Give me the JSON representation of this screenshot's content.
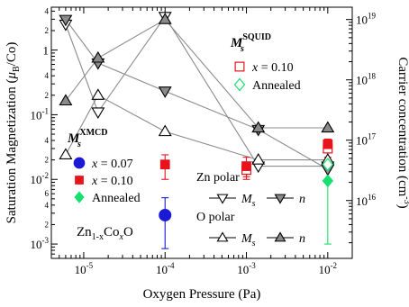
{
  "chart_data": {
    "type": "scatter",
    "xlabel": "Oxygen Pressure (Pa)",
    "ylabel_left": "Saturation Magnetization (μB/Co)",
    "ylabel_right": "Carrier concentration (cm⁻³)",
    "x_scale": "log",
    "y_scale": "log",
    "xlim": [
      4e-06,
      0.02
    ],
    "ylim_left": [
      0.0006,
      4.6
    ],
    "ylim_right": [
      1100000000000000.0,
      1.6e+19
    ],
    "x_ticks": [
      {
        "v": 1e-05,
        "b": "10",
        "e": "-5"
      },
      {
        "v": 0.0001,
        "b": "10",
        "e": "-4"
      },
      {
        "v": 0.001,
        "b": "10",
        "e": "-3"
      },
      {
        "v": 0.01,
        "b": "10",
        "e": "-2"
      }
    ],
    "y_left_ticks": [
      {
        "v": 0.001,
        "b": "10",
        "e": "-3"
      },
      {
        "v": 0.01,
        "b": "10",
        "e": "-2"
      },
      {
        "v": 0.1,
        "b": "10",
        "e": "-1"
      },
      {
        "v": 1,
        "b": "1",
        "e": ""
      }
    ],
    "y_left_minor_labels": [
      {
        "v": 0.002,
        "t": "2"
      },
      {
        "v": 0.004,
        "t": "4"
      },
      {
        "v": 0.006,
        "t": "6"
      },
      {
        "v": 0.02,
        "t": "2"
      },
      {
        "v": 0.04,
        "t": "4"
      },
      {
        "v": 0.2,
        "t": "2"
      },
      {
        "v": 0.4,
        "t": "4"
      },
      {
        "v": 2,
        "t": "2"
      },
      {
        "v": 4,
        "t": "4"
      }
    ],
    "y_right_ticks": [
      {
        "v": 1e+16,
        "b": "10",
        "e": "16"
      },
      {
        "v": 1e+17,
        "b": "10",
        "e": "17"
      },
      {
        "v": 1e+18,
        "b": "10",
        "e": "18"
      },
      {
        "v": 1e+19,
        "b": "10",
        "e": "19"
      }
    ],
    "sample_label": {
      "pre": "Zn",
      "sub1": "1-x",
      "mid": "Co",
      "sub2": "x",
      "post": "O"
    },
    "squid_legend": {
      "title_sym": "M",
      "title_sub": "s",
      "title_sup": "SQUID",
      "entries": [
        {
          "marker": "open-square",
          "color": "#e8141c",
          "var": "x",
          "text": " = 0.10"
        },
        {
          "marker": "open-diamond",
          "color": "#17e06e",
          "var": "",
          "text": "Annealed"
        }
      ]
    },
    "xmcd_legend": {
      "title_sym": "M",
      "title_sub": "s",
      "title_sup": "XMCD",
      "entries": [
        {
          "marker": "filled-circle",
          "color": "#1a1ad6",
          "var": "x",
          "text": " = 0.07"
        },
        {
          "marker": "filled-square",
          "color": "#e8141c",
          "var": "x",
          "text": " = 0.10"
        },
        {
          "marker": "filled-diamond",
          "color": "#17e06e",
          "var": "",
          "text": "Annealed"
        }
      ]
    },
    "polar_legend": {
      "groups": [
        {
          "title": "Zn polar",
          "marker_ms": "open-down-triangle",
          "marker_n": "gray-down-triangle",
          "ms_sym": "M",
          "ms_sub": "s",
          "n_sym": "n"
        },
        {
          "title": "O polar",
          "marker_ms": "open-up-triangle",
          "marker_n": "gray-up-triangle",
          "ms_sym": "M",
          "ms_sub": "s",
          "n_sym": "n"
        }
      ]
    },
    "series": [
      {
        "name": "Zn polar Ms",
        "axis": "left",
        "marker": "open-down-triangle",
        "line": true,
        "points": [
          {
            "x": 6e-06,
            "y": 2.5
          },
          {
            "x": 1.5e-05,
            "y": 0.11
          },
          {
            "x": 0.0001,
            "y": 3.3
          },
          {
            "x": 0.0014,
            "y": 0.016
          },
          {
            "x": 0.01,
            "y": 0.016
          }
        ]
      },
      {
        "name": "Zn polar n",
        "axis": "right",
        "marker": "gray-down-triangle",
        "line": true,
        "points": [
          {
            "x": 6e-06,
            "y": 1e+19
          },
          {
            "x": 1.5e-05,
            "y": 1.9e+18
          },
          {
            "x": 0.0001,
            "y": 6.5e+17
          },
          {
            "x": 0.0014,
            "y": 1.5e+17
          },
          {
            "x": 0.01,
            "y": 3.3e+16
          }
        ]
      },
      {
        "name": "O polar Ms",
        "axis": "left",
        "marker": "open-up-triangle",
        "line": true,
        "points": [
          {
            "x": 6e-06,
            "y": 0.024
          },
          {
            "x": 1.5e-05,
            "y": 0.2
          },
          {
            "x": 0.0001,
            "y": 0.055
          },
          {
            "x": 0.0014,
            "y": 0.02
          },
          {
            "x": 0.01,
            "y": 0.02
          }
        ]
      },
      {
        "name": "O polar n",
        "axis": "right",
        "marker": "gray-up-triangle",
        "line": true,
        "points": [
          {
            "x": 6e-06,
            "y": 4.5e+17
          },
          {
            "x": 1.5e-05,
            "y": 2.3e+18
          },
          {
            "x": 0.0001,
            "y": 1e+19
          },
          {
            "x": 0.0014,
            "y": 1.6e+17
          },
          {
            "x": 0.01,
            "y": 1.6e+17
          }
        ]
      },
      {
        "name": "SQUID x=0.10",
        "axis": "left",
        "marker": "open-square",
        "line": false,
        "points": [
          {
            "x": 0.001,
            "y": 0.014,
            "err": [
              0.011,
              0.018
            ]
          },
          {
            "x": 0.01,
            "y": 0.03,
            "err": [
              0.022,
              0.038
            ]
          }
        ]
      },
      {
        "name": "SQUID Annealed",
        "axis": "left",
        "marker": "open-diamond",
        "line": false,
        "points": [
          {
            "x": 0.01,
            "y": 0.017,
            "err": [
              0.014,
              0.02
            ]
          }
        ]
      },
      {
        "name": "XMCD x=0.07",
        "axis": "left",
        "marker": "filled-circle",
        "line": false,
        "points": [
          {
            "x": 0.0001,
            "y": 0.0028,
            "err": [
              0.00085,
              0.0052
            ]
          }
        ]
      },
      {
        "name": "XMCD x=0.10",
        "axis": "left",
        "marker": "filled-square",
        "line": false,
        "points": [
          {
            "x": 0.0001,
            "y": 0.017,
            "err": [
              0.01,
              0.024
            ]
          },
          {
            "x": 0.001,
            "y": 0.016,
            "err": [
              0.01,
              0.022
            ]
          },
          {
            "x": 0.01,
            "y": 0.035,
            "err": [
              0.028,
              0.042
            ]
          }
        ]
      },
      {
        "name": "XMCD Annealed",
        "axis": "left",
        "marker": "filled-diamond",
        "line": false,
        "points": [
          {
            "x": 0.01,
            "y": 0.0095,
            "err": [
              0.001,
              0.018
            ]
          }
        ]
      }
    ],
    "grid": false
  }
}
